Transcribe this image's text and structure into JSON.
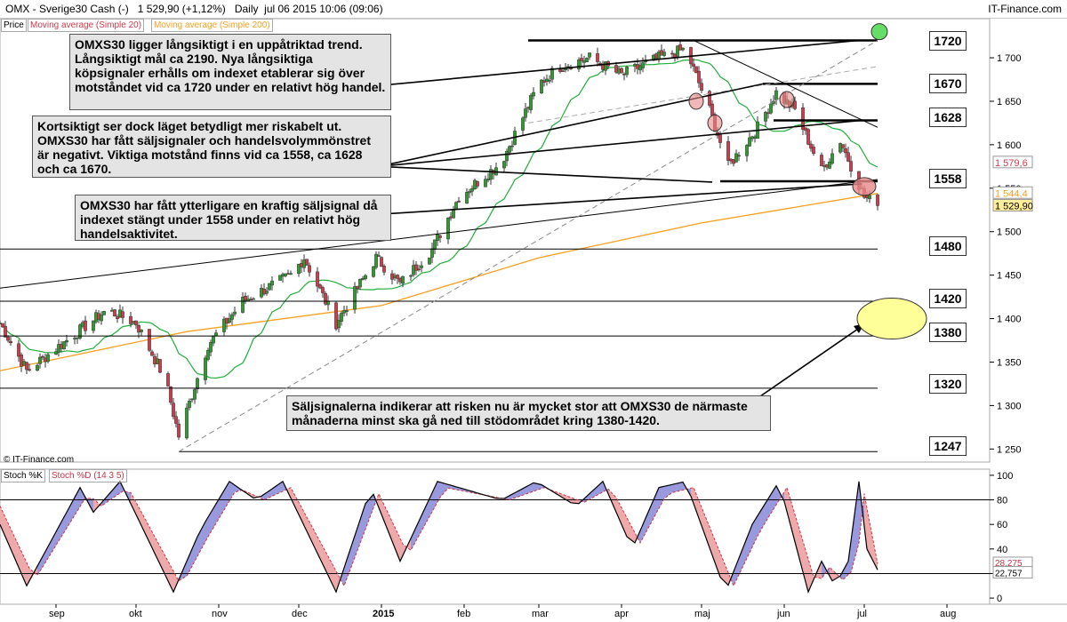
{
  "header": {
    "title": "OMX - Sverige30 Cash (-)",
    "quote": "1 529,90 (+1,12%)",
    "period": "Daily",
    "datetime": "jul 06 2015 10:06 (09:06)",
    "brand": "IT-Finance.com"
  },
  "legend_price": {
    "price": "Price",
    "ma20": "Moving average (Simple 20)",
    "ma200": "Moving average (Simple 200)"
  },
  "legend_stoch": {
    "k": "Stoch %K",
    "d": "Stoch %D (14 3 5)"
  },
  "watermark": "© IT-Finance.com",
  "annotations": [
    "OMXS30 ligger långsiktigt i en uppåtriktad trend. Långsiktigt mål ca 2190. Nya långsiktiga köpsignaler erhålls om indexet etablerar sig över motståndet vid ca 1720 under en relativt hög handel.",
    "Kortsiktigt ser dock läget betydligt mer riskabelt ut. OMXS30 har fått säljsignaler och handelsvolymmönstret är negativt. Viktiga motstånd finns vid ca 1558, ca 1628 och ca 1670.",
    "OMXS30 har fått ytterligare en kraftig säljsignal då indexet stängt under 1558 under en relativt hög handelsaktivitet.",
    "Säljsignalerna indikerar att risken nu är mycket stor att OMXS30 de närmaste månaderna minst ska gå ned till stödområdet kring 1380-1420."
  ],
  "levels": [
    "1720",
    "1670",
    "1628",
    "1558",
    "1480",
    "1420",
    "1380",
    "1320",
    "1247"
  ],
  "colors": {
    "up": "#2e9b2e",
    "down": "#d03a4a",
    "ma20": "#1fae3a",
    "ma200": "#f5a020",
    "stoch_k": "#000000",
    "stoch_d": "#cc3344",
    "stoch_up_fill": "#9999dd",
    "stoch_down_fill": "#eeaaaa",
    "highlight_green": "#66dd66",
    "highlight_yellow": "#ffff99",
    "highlight_red": "#e88888"
  },
  "chart_data": [
    {
      "type": "candlestick",
      "title": "OMX - Sverige30 Cash (-)",
      "x_ticks": [
        "sep",
        "okt",
        "nov",
        "dec",
        "2015",
        "feb",
        "mar",
        "apr",
        "maj",
        "jun",
        "jul",
        "aug"
      ],
      "y_ticks": [
        "1 250",
        "1 300",
        "1 350",
        "1 400",
        "1 450",
        "1 500",
        "1 550",
        "1 600",
        "1 650",
        "1 700"
      ],
      "ylim": [
        1235,
        1745
      ],
      "price_labels": {
        "last": "1 529,90",
        "ma20": "1 579,6",
        "ma200": "1 544,4"
      },
      "waypoints": [
        [
          "2014-08-11",
          1395
        ],
        [
          "2014-08-21",
          1340
        ],
        [
          "2014-09-05",
          1375
        ],
        [
          "2014-09-20",
          1410
        ],
        [
          "2014-10-01",
          1395
        ],
        [
          "2014-10-12",
          1330
        ],
        [
          "2014-10-17",
          1265
        ],
        [
          "2014-10-28",
          1370
        ],
        [
          "2014-11-10",
          1420
        ],
        [
          "2014-11-28",
          1450
        ],
        [
          "2014-12-03",
          1470
        ],
        [
          "2014-12-15",
          1395
        ],
        [
          "2014-12-30",
          1470
        ],
        [
          "2015-01-08",
          1440
        ],
        [
          "2015-01-20",
          1480
        ],
        [
          "2015-01-30",
          1540
        ],
        [
          "2015-02-15",
          1580
        ],
        [
          "2015-03-01",
          1670
        ],
        [
          "2015-03-09",
          1690
        ],
        [
          "2015-03-20",
          1700
        ],
        [
          "2015-04-01",
          1680
        ],
        [
          "2015-04-15",
          1700
        ],
        [
          "2015-04-25",
          1710
        ],
        [
          "2015-05-04",
          1640
        ],
        [
          "2015-05-11",
          1575
        ],
        [
          "2015-05-22",
          1620
        ],
        [
          "2015-05-29",
          1660
        ],
        [
          "2015-06-05",
          1640
        ],
        [
          "2015-06-15",
          1570
        ],
        [
          "2015-06-22",
          1605
        ],
        [
          "2015-07-01",
          1540
        ],
        [
          "2015-07-06",
          1530
        ]
      ],
      "horizontal_levels": [
        1720,
        1670,
        1628,
        1558,
        1480,
        1420,
        1380,
        1320,
        1247
      ]
    },
    {
      "type": "line",
      "title": "Stoch %K / Stoch %D (14 3 5)",
      "y_ticks": [
        "0",
        "20",
        "40",
        "60",
        "80",
        "100"
      ],
      "ylim": [
        -5,
        105
      ],
      "last_labels": {
        "k": "22,757",
        "d": "28,275"
      },
      "k_waypoints": [
        [
          "2014-08-11",
          60
        ],
        [
          "2014-08-21",
          10
        ],
        [
          "2014-09-10",
          90
        ],
        [
          "2014-09-15",
          70
        ],
        [
          "2014-09-25",
          95
        ],
        [
          "2014-10-15",
          5
        ],
        [
          "2014-10-25",
          55
        ],
        [
          "2014-11-05",
          95
        ],
        [
          "2014-11-15",
          80
        ],
        [
          "2014-11-25",
          95
        ],
        [
          "2014-12-15",
          5
        ],
        [
          "2014-12-28",
          90
        ],
        [
          "2015-01-08",
          30
        ],
        [
          "2015-01-22",
          95
        ],
        [
          "2015-02-15",
          80
        ],
        [
          "2015-02-28",
          95
        ],
        [
          "2015-03-15",
          75
        ],
        [
          "2015-03-25",
          95
        ],
        [
          "2015-04-05",
          40
        ],
        [
          "2015-04-15",
          90
        ],
        [
          "2015-04-25",
          95
        ],
        [
          "2015-05-10",
          5
        ],
        [
          "2015-05-20",
          60
        ],
        [
          "2015-05-30",
          95
        ],
        [
          "2015-06-10",
          5
        ],
        [
          "2015-06-15",
          30
        ],
        [
          "2015-06-20",
          10
        ],
        [
          "2015-06-25",
          30
        ],
        [
          "2015-06-29",
          95
        ],
        [
          "2015-07-02",
          40
        ],
        [
          "2015-07-06",
          23
        ]
      ],
      "d_waypoints": [
        [
          "2014-08-11",
          75
        ],
        [
          "2014-08-24",
          15
        ],
        [
          "2014-09-13",
          85
        ],
        [
          "2014-09-18",
          75
        ],
        [
          "2014-09-28",
          90
        ],
        [
          "2014-10-18",
          10
        ],
        [
          "2014-10-28",
          50
        ],
        [
          "2014-11-08",
          90
        ],
        [
          "2014-11-18",
          80
        ],
        [
          "2014-11-28",
          90
        ],
        [
          "2014-12-18",
          10
        ],
        [
          "2014-12-31",
          85
        ],
        [
          "2015-01-11",
          35
        ],
        [
          "2015-01-25",
          90
        ],
        [
          "2015-02-18",
          80
        ],
        [
          "2015-03-03",
          90
        ],
        [
          "2015-03-18",
          78
        ],
        [
          "2015-03-28",
          90
        ],
        [
          "2015-04-08",
          45
        ],
        [
          "2015-04-18",
          85
        ],
        [
          "2015-04-28",
          90
        ],
        [
          "2015-05-13",
          10
        ],
        [
          "2015-05-23",
          55
        ],
        [
          "2015-06-02",
          90
        ],
        [
          "2015-06-13",
          10
        ],
        [
          "2015-06-18",
          25
        ],
        [
          "2015-06-23",
          15
        ],
        [
          "2015-06-28",
          25
        ],
        [
          "2015-07-01",
          85
        ],
        [
          "2015-07-04",
          50
        ],
        [
          "2015-07-06",
          28
        ]
      ],
      "horizontal_levels": [
        20,
        80
      ]
    }
  ]
}
